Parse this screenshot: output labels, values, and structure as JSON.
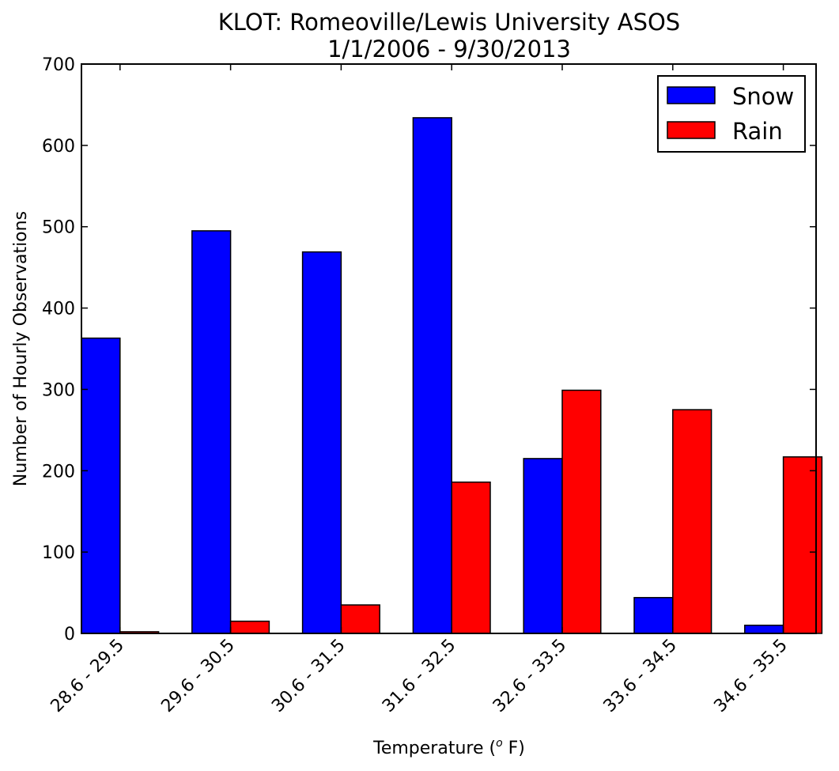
{
  "chart_data": {
    "type": "bar",
    "title": "KLOT: Romeoville/Lewis University ASOS",
    "subtitle": "1/1/2006 - 9/30/2013",
    "xlabel": "Temperature (",
    "xlabel_superscript": "o",
    "xlabel_suffix": " F)",
    "ylabel": "Number of Hourly Observations",
    "ylim": [
      0,
      700
    ],
    "yticks": [
      "0",
      "100",
      "200",
      "300",
      "400",
      "500",
      "600",
      "700"
    ],
    "grid": false,
    "legend_position": "top-right",
    "categories": [
      "28.6 - 29.5",
      "29.6 - 30.5",
      "30.6 - 31.5",
      "31.6 - 32.5",
      "32.6 - 33.5",
      "33.6 - 34.5",
      "34.6 - 35.5"
    ],
    "series": [
      {
        "name": "Snow",
        "color": "#0000ff",
        "values": [
          363,
          495,
          469,
          634,
          215,
          44,
          10
        ]
      },
      {
        "name": "Rain",
        "color": "#ff0000",
        "values": [
          2,
          15,
          35,
          186,
          299,
          275,
          217
        ]
      }
    ]
  }
}
